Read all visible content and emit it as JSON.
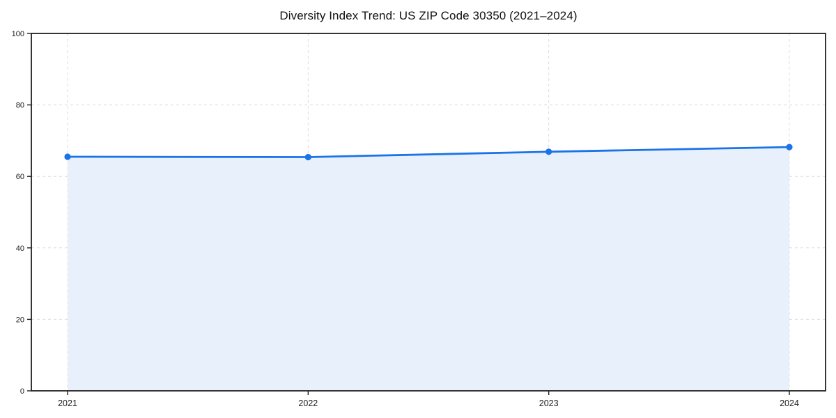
{
  "title": "Diversity Index Trend: US ZIP Code 30350 (2021–2024)",
  "colors": {
    "line": "#1a73e8",
    "marker": "#1a73e8",
    "area_fill": "#e8f0fc",
    "grid": "#dcdcdc",
    "spine": "#1f1f1f",
    "tick": "#1f1f1f",
    "tick_label": "#1a1a1a",
    "background": "#ffffff"
  },
  "chart_data": {
    "type": "area",
    "title": "Diversity Index Trend: US ZIP Code 30350 (2021–2024)",
    "x": [
      2021,
      2022,
      2023,
      2024
    ],
    "xticklabels": [
      "2021",
      "2022",
      "2023",
      "2024"
    ],
    "series": [
      {
        "name": "Diversity Index",
        "values": [
          65.5,
          65.4,
          66.9,
          68.2
        ]
      }
    ],
    "xlabel": "",
    "ylabel": "",
    "ylim": [
      0,
      100
    ],
    "yticks": [
      0,
      20,
      40,
      60,
      80,
      100
    ],
    "grid": true,
    "grid_style": "dashed",
    "legend": false,
    "marker": "circle",
    "frame": "full-box"
  }
}
